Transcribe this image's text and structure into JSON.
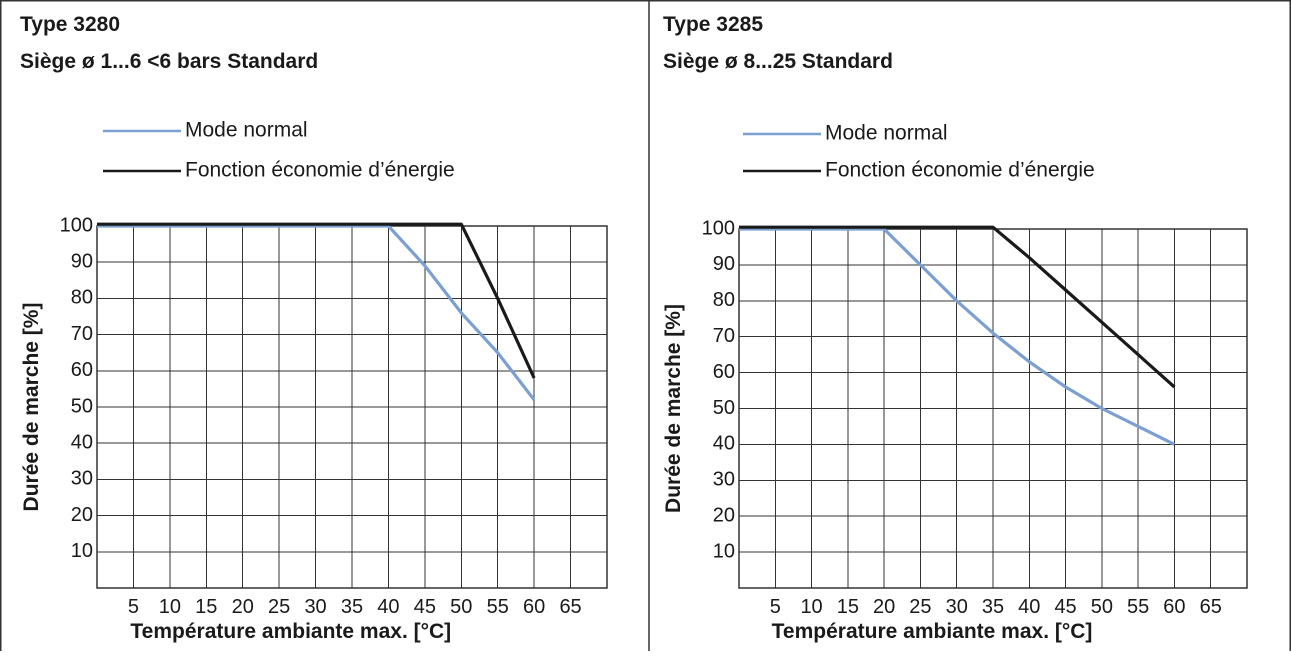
{
  "chart_data": [
    {
      "type": "line",
      "title": "Type 3280",
      "subtitle": "Siège ø 1...6 <6 bars Standard",
      "xlabel": "Température ambiante max. [°C]",
      "ylabel": "Durée de marche [%]",
      "xlim": [
        0,
        70
      ],
      "ylim": [
        0,
        100
      ],
      "xticks": [
        "5",
        "10",
        "15",
        "20",
        "25",
        "30",
        "35",
        "40",
        "45",
        "50",
        "55",
        "60",
        "65"
      ],
      "yticks": [
        "10",
        "20",
        "30",
        "40",
        "50",
        "60",
        "70",
        "80",
        "90",
        "100"
      ],
      "grid": true,
      "legend_position": "top-left",
      "series": [
        {
          "name": "Mode normal",
          "color": "#7b9fd0",
          "points": [
            [
              0,
              100
            ],
            [
              40,
              100
            ],
            [
              45,
              89
            ],
            [
              50,
              76
            ],
            [
              55,
              65
            ],
            [
              60,
              52
            ]
          ]
        },
        {
          "name": "Fonction économie d’énergie",
          "color": "#1a1a1a",
          "points": [
            [
              0,
              100.5
            ],
            [
              50,
              100.5
            ],
            [
              55,
              80
            ],
            [
              60,
              58
            ]
          ]
        }
      ]
    },
    {
      "type": "line",
      "title": "Type 3285",
      "subtitle": "Siège ø 8...25 Standard",
      "xlabel": "Température ambiante max. [°C]",
      "ylabel": "Durée de marche [%]",
      "xlim": [
        0,
        70
      ],
      "ylim": [
        0,
        100
      ],
      "xticks": [
        "5",
        "10",
        "15",
        "20",
        "25",
        "30",
        "35",
        "40",
        "45",
        "50",
        "55",
        "60",
        "65"
      ],
      "yticks": [
        "10",
        "20",
        "30",
        "40",
        "50",
        "60",
        "70",
        "80",
        "90",
        "100"
      ],
      "grid": true,
      "legend_position": "top-left",
      "series": [
        {
          "name": "Mode normal",
          "color": "#7b9fd0",
          "points": [
            [
              0,
              100
            ],
            [
              20,
              100
            ],
            [
              25,
              90
            ],
            [
              30,
              80
            ],
            [
              35,
              71
            ],
            [
              40,
              63
            ],
            [
              45,
              56
            ],
            [
              50,
              50
            ],
            [
              55,
              45
            ],
            [
              60,
              40
            ]
          ]
        },
        {
          "name": "Fonction économie d’énergie",
          "color": "#1a1a1a",
          "points": [
            [
              0,
              100.5
            ],
            [
              35,
              100.5
            ],
            [
              40,
              92
            ],
            [
              45,
              83
            ],
            [
              50,
              74
            ],
            [
              55,
              65
            ],
            [
              60,
              56
            ]
          ]
        }
      ]
    }
  ]
}
